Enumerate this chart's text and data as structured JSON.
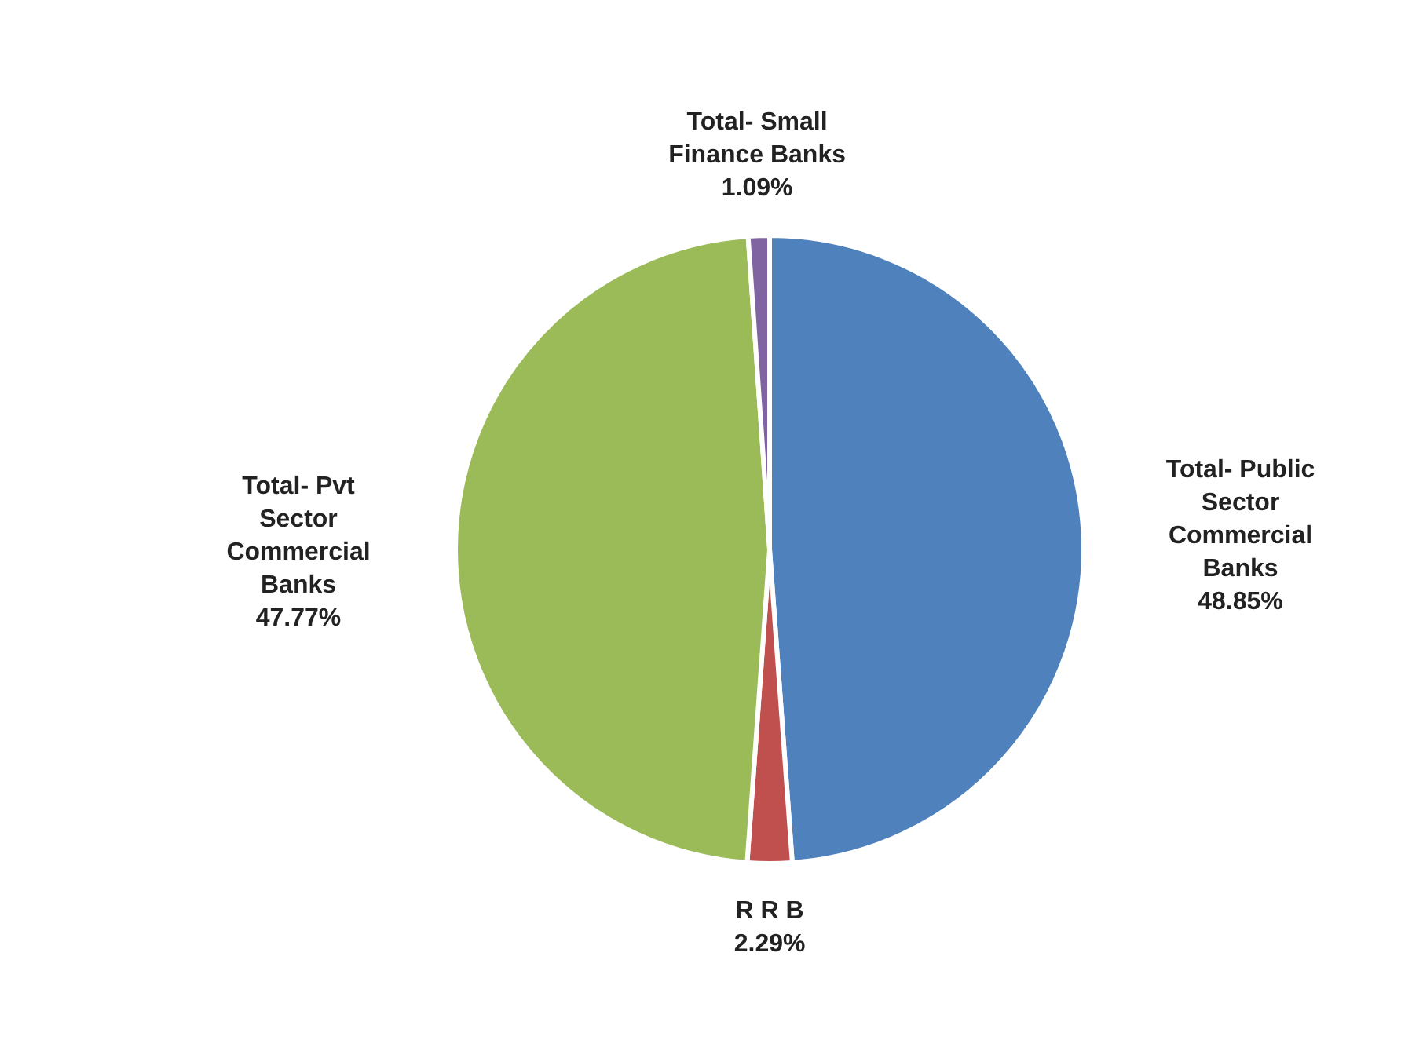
{
  "chart_data": {
    "type": "pie",
    "categories": [
      "Total- Public Sector Commercial Banks",
      "R R B",
      "Total- Pvt Sector Commercial Banks",
      "Total- Small Finance Banks"
    ],
    "values": [
      48.85,
      2.29,
      47.77,
      1.09
    ],
    "value_labels": [
      "48.85%",
      "2.29%",
      "47.77%",
      "1.09%"
    ],
    "colors": [
      "#4f81bd",
      "#c0504d",
      "#9bbb59",
      "#8064a2"
    ]
  }
}
